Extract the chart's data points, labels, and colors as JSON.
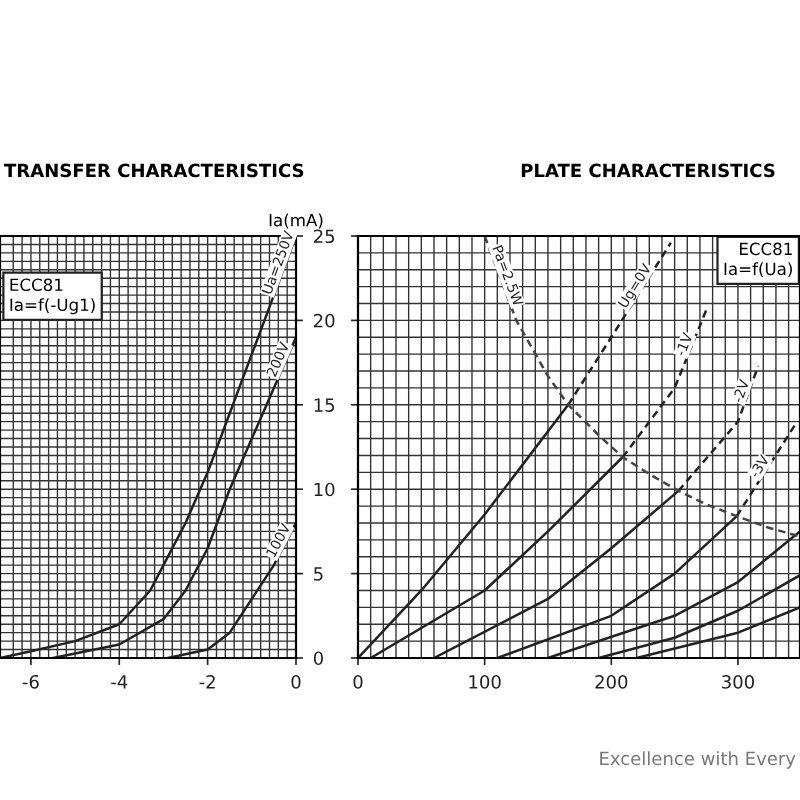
{
  "chart_data": [
    {
      "type": "line",
      "title": "TRANSFER CHARACTERISTICS",
      "ylabel": "Ia(mA)",
      "xlim": [
        -6.7,
        0
      ],
      "xticks": [
        -6,
        -4,
        -2,
        0
      ],
      "ylim": [
        0,
        25
      ],
      "yticks": [
        0,
        5,
        10,
        15,
        20,
        25
      ],
      "grid": true,
      "annotations": [
        "ECC81",
        "Ia=f(-Ug1)"
      ],
      "series": [
        {
          "name": "Ua=250V",
          "color": "#222222",
          "line_style": "solid",
          "x": [
            -6.7,
            -6,
            -5,
            -4,
            -3.3,
            -3,
            -2.5,
            -2,
            -1.5,
            -1,
            -0.5,
            0
          ],
          "values": [
            0,
            0.4,
            1.0,
            2.0,
            4,
            5.5,
            8,
            11,
            14.5,
            18,
            21.5,
            25
          ]
        },
        {
          "name": "200V",
          "color": "#222222",
          "line_style": "solid",
          "x": [
            -5.5,
            -4,
            -3,
            -2.5,
            -2,
            -1.5,
            -1,
            -0.5,
            0
          ],
          "values": [
            0,
            0.8,
            2.3,
            4,
            6.5,
            10,
            13,
            16,
            19
          ]
        },
        {
          "name": "100V",
          "color": "#222222",
          "line_style": "solid",
          "x": [
            -2.9,
            -2,
            -1.5,
            -1,
            -0.5,
            0
          ],
          "values": [
            0,
            0.5,
            1.5,
            3.5,
            5.5,
            8
          ]
        }
      ]
    },
    {
      "type": "line",
      "title": "PLATE CHARACTERISTICS",
      "xlim": [
        0,
        349
      ],
      "xticks": [
        0,
        100,
        200,
        300
      ],
      "ylim": [
        0,
        25
      ],
      "yticks": [
        0,
        5,
        10,
        15,
        20,
        25
      ],
      "grid": true,
      "tick_labels": "x",
      "annotations": [
        "ECC81",
        "Ia=f(Ua)",
        "Excellence with Every"
      ],
      "series": [
        {
          "color": "#222222",
          "line_style": "solid",
          "x": [
            0,
            50,
            100,
            166
          ],
          "values": [
            0,
            4,
            8.5,
            15
          ]
        },
        {
          "name": "Ug=0V",
          "color": "#222222",
          "line_style": "dashed",
          "x": [
            166,
            200,
            247
          ],
          "values": [
            15,
            19,
            24.6
          ]
        },
        {
          "color": "#222222",
          "line_style": "solid",
          "x": [
            10,
            100,
            150,
            209
          ],
          "values": [
            0,
            4,
            7.5,
            11.9
          ]
        },
        {
          "name": "-1V",
          "color": "#222222",
          "line_style": "dashed",
          "x": [
            209,
            250,
            276
          ],
          "values": [
            11.9,
            16,
            20.8
          ]
        },
        {
          "color": "#222222",
          "line_style": "solid",
          "x": [
            60,
            150,
            200,
            253
          ],
          "values": [
            0,
            3.5,
            6.5,
            9.9
          ]
        },
        {
          "name": "-2V",
          "color": "#222222",
          "line_style": "dashed",
          "x": [
            253,
            300,
            316
          ],
          "values": [
            9.9,
            14,
            17.3
          ]
        },
        {
          "color": "#222222",
          "line_style": "solid",
          "x": [
            110,
            200,
            250,
            299
          ],
          "values": [
            0,
            2.5,
            5,
            8.4
          ]
        },
        {
          "name": "-3V",
          "color": "#222222",
          "line_style": "dashed",
          "x": [
            299,
            345
          ],
          "values": [
            8.4,
            13.8
          ]
        },
        {
          "color": "#222222",
          "line_style": "solid",
          "x": [
            150,
            250,
            300,
            349
          ],
          "values": [
            0,
            2.5,
            4.5,
            7.5
          ]
        },
        {
          "color": "#222222",
          "line_style": "solid",
          "x": [
            190,
            250,
            300,
            349
          ],
          "values": [
            0,
            1.2,
            2.8,
            4.9
          ]
        },
        {
          "color": "#222222",
          "line_style": "solid",
          "x": [
            220,
            300,
            349
          ],
          "values": [
            0,
            1.5,
            3.0
          ]
        },
        {
          "name": "Pa=2.5W",
          "color": "#444444",
          "line_style": "dashed",
          "x": [
            100,
            125,
            150,
            166,
            190,
            209,
            230,
            253,
            275,
            299,
            325,
            349
          ],
          "values": [
            25,
            20,
            16.7,
            15,
            13.2,
            11.9,
            10.9,
            9.9,
            9.1,
            8.4,
            7.7,
            7.2
          ]
        }
      ]
    }
  ]
}
